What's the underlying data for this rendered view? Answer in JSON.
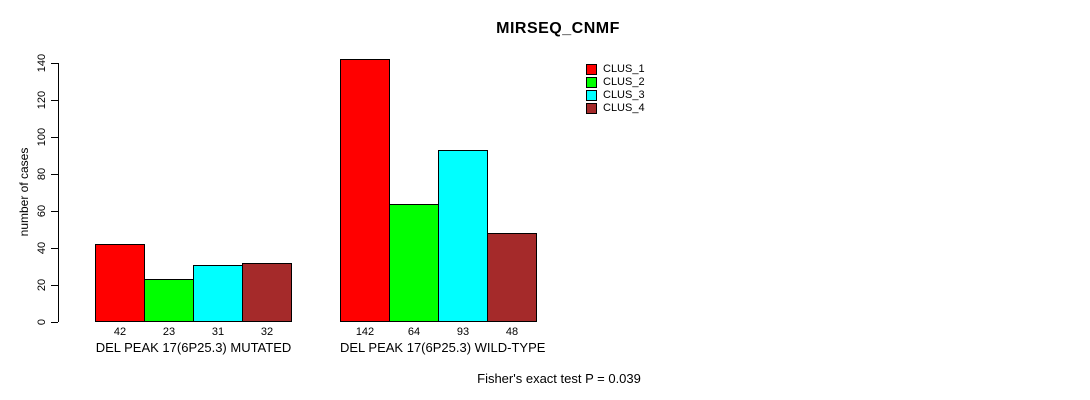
{
  "chart_data": {
    "type": "bar",
    "title": "MIRSEQ_CNMF",
    "xlabel": "",
    "ylabel": "number of cases",
    "ylim": [
      0,
      140
    ],
    "yticks": [
      0,
      20,
      40,
      60,
      80,
      100,
      120,
      140
    ],
    "grid": false,
    "legend_position": "top-right",
    "categories": [
      "DEL PEAK 17(6P25.3) MUTATED",
      "DEL PEAK 17(6P25.3) WILD-TYPE"
    ],
    "series": [
      {
        "name": "CLUS_1",
        "color": "#FF0000",
        "values": [
          42,
          142
        ]
      },
      {
        "name": "CLUS_2",
        "color": "#00FF00",
        "values": [
          23,
          64
        ]
      },
      {
        "name": "CLUS_3",
        "color": "#00FFFF",
        "values": [
          31,
          93
        ]
      },
      {
        "name": "CLUS_4",
        "color": "#A52A2A",
        "values": [
          32,
          48
        ]
      }
    ],
    "value_labels_shown": true,
    "annotation": "Fisher's exact test P = 0.039"
  },
  "colors": {
    "background": "#FFFFFF",
    "axis": "#000000",
    "text": "#000000",
    "bar_border": "#000000"
  }
}
